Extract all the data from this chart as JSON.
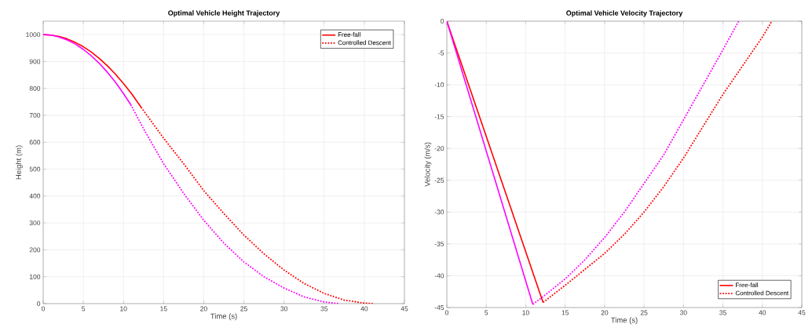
{
  "chart_data": [
    {
      "type": "line",
      "title": "Optimal Vehicle Height Trajectory",
      "xlabel": "Time (s)",
      "ylabel": "Height (m)",
      "xlim": [
        0,
        45
      ],
      "ylim": [
        0,
        1050
      ],
      "xticks": [
        0,
        5,
        10,
        15,
        20,
        25,
        30,
        35,
        40,
        45
      ],
      "yticks": [
        0,
        100,
        200,
        300,
        400,
        500,
        600,
        700,
        800,
        900,
        1000
      ],
      "grid": true,
      "legend": "top right",
      "series": [
        {
          "name": "Free-fall",
          "color": "#ff0000",
          "line_style": "solid",
          "x": [
            0,
            1,
            2,
            3,
            4,
            5,
            6,
            7,
            8,
            9,
            10,
            11,
            12.2
          ],
          "values": [
            1000,
            998,
            993,
            984,
            971,
            955,
            935,
            911,
            884,
            853,
            818,
            781,
            730
          ]
        },
        {
          "name": "Controlled Descent",
          "color": "#ff0000",
          "line_style": "dotted",
          "x": [
            12.2,
            15,
            17.5,
            20,
            22.5,
            25,
            27.5,
            30,
            32.5,
            35,
            37.5,
            40,
            41.2
          ],
          "values": [
            730,
            615,
            520,
            420,
            335,
            255,
            185,
            125,
            75,
            38,
            13,
            2,
            0
          ]
        },
        {
          "color": "#ff00ff",
          "line_style": "solid",
          "x": [
            0,
            1,
            2,
            3,
            4,
            5,
            6,
            7,
            8,
            9,
            10,
            10.9
          ],
          "values": [
            1000,
            998,
            991,
            980,
            965,
            945,
            921,
            893,
            860,
            823,
            781,
            740
          ]
        },
        {
          "color": "#ff00ff",
          "line_style": "dotted",
          "x": [
            10.9,
            12.5,
            15,
            17.5,
            20,
            22.5,
            25,
            27.5,
            30,
            32.5,
            35,
            36.8
          ],
          "values": [
            740,
            650,
            520,
            410,
            310,
            225,
            155,
            100,
            58,
            25,
            6,
            0
          ]
        }
      ]
    },
    {
      "type": "line",
      "title": "Optimal Vehicle Velocity Trajectory",
      "xlabel": "Time (s)",
      "ylabel": "Velocity (m/s)",
      "xlim": [
        0,
        45
      ],
      "ylim": [
        -45,
        0
      ],
      "xticks": [
        0,
        5,
        10,
        15,
        20,
        25,
        30,
        35,
        40,
        45
      ],
      "yticks": [
        -45,
        -40,
        -35,
        -30,
        -25,
        -20,
        -15,
        -10,
        -5,
        0
      ],
      "grid": true,
      "legend": "bottom right",
      "series": [
        {
          "name": "Free-fall",
          "color": "#ff0000",
          "line_style": "solid",
          "x": [
            0,
            12.2
          ],
          "values": [
            0,
            -44.2
          ]
        },
        {
          "name": "Controlled Descent",
          "color": "#ff0000",
          "line_style": "dotted",
          "x": [
            12.2,
            15,
            17.5,
            20,
            22.5,
            25,
            27.5,
            30,
            32.5,
            35,
            37.5,
            40,
            41.2
          ],
          "values": [
            -44.2,
            -41.5,
            -39,
            -36.5,
            -33.5,
            -30,
            -26,
            -21.5,
            -16.5,
            -11.5,
            -7,
            -2.5,
            0
          ]
        },
        {
          "color": "#ff00ff",
          "line_style": "solid",
          "x": [
            0,
            10.9
          ],
          "values": [
            0,
            -44.5
          ]
        },
        {
          "color": "#ff00ff",
          "line_style": "dotted",
          "x": [
            10.9,
            12.5,
            15,
            17.5,
            20,
            22.5,
            25,
            27.5,
            30,
            32.5,
            35,
            37
          ],
          "values": [
            -44.5,
            -43,
            -40.5,
            -37.5,
            -34,
            -30,
            -25.5,
            -21,
            -15.5,
            -10,
            -4.5,
            0
          ]
        }
      ]
    }
  ]
}
